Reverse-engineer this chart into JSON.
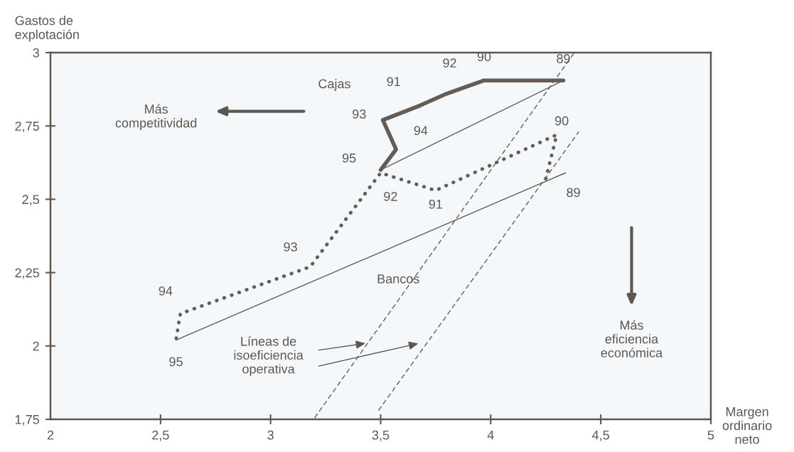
{
  "chart_data": {
    "type": "line",
    "xlabel": "Margen\nordinario\nneto",
    "ylabel": "Gastos de\nexplotación",
    "xlim": [
      2,
      5
    ],
    "ylim": [
      1.75,
      3
    ],
    "xticks": [
      2,
      {
        "value": 2.5,
        "label": "2,5"
      },
      3,
      {
        "value": 3.5,
        "label": "3,5"
      },
      4,
      {
        "value": 4.5,
        "label": "4,5"
      },
      5
    ],
    "yticks": [
      {
        "value": 1.75,
        "label": "1,75"
      },
      2,
      {
        "value": 2.25,
        "label": "2,25"
      },
      {
        "value": 2.5,
        "label": "2,5"
      },
      {
        "value": 2.75,
        "label": "2,75"
      },
      3
    ],
    "grid": false,
    "marker": "none",
    "series": [
      {
        "color": "#655c55",
        "line_style": "solid",
        "x": [
          4.33,
          3.97,
          3.8,
          3.68,
          3.51,
          3.57,
          3.5
        ],
        "values": [
          2.905,
          2.905,
          2.86,
          2.82,
          2.77,
          2.67,
          2.6
        ]
      },
      {
        "color": "#655c55",
        "line_style": "dotted",
        "x": [
          4.25,
          4.3,
          3.75,
          3.5,
          3.18,
          2.59,
          2.57
        ],
        "values": [
          2.57,
          2.72,
          2.53,
          2.59,
          2.27,
          2.11,
          2.02
        ]
      },
      {
        "color": "#655c55",
        "line_style": "solid",
        "x": [
          3.5,
          4.33
        ],
        "values": [
          2.6,
          2.905
        ]
      },
      {
        "color": "#655c55",
        "line_style": "solid",
        "x": [
          2.57,
          4.34
        ],
        "values": [
          2.02,
          2.59
        ]
      },
      {
        "color": "#655c55",
        "line_style": "dashed",
        "x": [
          3.2,
          4.38
        ],
        "values": [
          1.755,
          3.0
        ]
      },
      {
        "color": "#655c55",
        "line_style": "dashed",
        "x": [
          3.49,
          4.4
        ],
        "values": [
          1.78,
          2.73
        ]
      }
    ],
    "annotations": [
      "Cajas",
      "Bancos",
      "Más\ncompetitividad",
      "Más\neficiencia\neconómica",
      {
        "text": "Líneas de\nisoeficiencia\noperativa",
        "x": 3.44,
        "y": 2.01
      },
      {
        "text": "89",
        "x": 4.33,
        "y": 2.905
      },
      {
        "text": "90",
        "x": 3.97,
        "y": 2.905
      },
      {
        "text": "92",
        "x": 3.8,
        "y": 2.86
      },
      {
        "text": "91",
        "x": 3.68,
        "y": 2.82
      },
      {
        "text": "93",
        "x": 3.51,
        "y": 2.77
      },
      {
        "text": "94",
        "x": 3.57,
        "y": 2.67
      },
      {
        "text": "95",
        "x": 3.5,
        "y": 2.6
      },
      {
        "text": "89",
        "x": 4.25,
        "y": 2.57
      },
      {
        "text": "90",
        "x": 4.3,
        "y": 2.72
      },
      {
        "text": "91",
        "x": 3.75,
        "y": 2.53
      },
      {
        "text": "92",
        "x": 3.5,
        "y": 2.59
      },
      {
        "text": "93",
        "x": 3.18,
        "y": 2.27
      },
      {
        "text": "94",
        "x": 2.59,
        "y": 2.11
      },
      {
        "text": "95",
        "x": 2.57,
        "y": 2.02
      }
    ]
  }
}
